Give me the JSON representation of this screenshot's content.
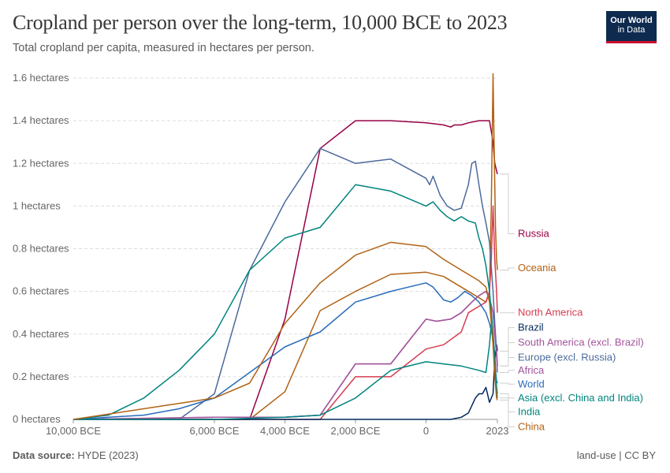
{
  "header": {
    "title": "Cropland per person over the long-term, 10,000 BCE to 2023",
    "subtitle": "Total cropland per capita, measured in hectares per person.",
    "logo_line1": "Our World",
    "logo_line2": "in Data"
  },
  "footer": {
    "source_label": "Data source:",
    "source_value": "HYDE (2023)",
    "right": "land-use | CC BY"
  },
  "chart_data": {
    "type": "line",
    "title": "Cropland per person over the long-term, 10,000 BCE to 2023",
    "subtitle": "Total cropland per capita, measured in hectares per person.",
    "ylim": [
      0,
      1.6
    ],
    "xlim": [
      -10000,
      2023
    ],
    "unit": "hectares",
    "y_ticks": [
      {
        "value": 0,
        "label": "0 hectares"
      },
      {
        "value": 0.2,
        "label": "0.2 hectares"
      },
      {
        "value": 0.4,
        "label": "0.4 hectares"
      },
      {
        "value": 0.6,
        "label": "0.6 hectares"
      },
      {
        "value": 0.8,
        "label": "0.8 hectares"
      },
      {
        "value": 1,
        "label": "1 hectares"
      },
      {
        "value": 1.2,
        "label": "1.2 hectares"
      },
      {
        "value": 1.4,
        "label": "1.4 hectares"
      },
      {
        "value": 1.6,
        "label": "1.6 hectares"
      }
    ],
    "x_ticks": [
      {
        "value": -10000,
        "label": "10,000 BCE"
      },
      {
        "value": -6000,
        "label": "6,000 BCE"
      },
      {
        "value": -4000,
        "label": "4,000 BCE"
      },
      {
        "value": -2000,
        "label": "2,000 BCE"
      },
      {
        "value": 0,
        "label": "0"
      },
      {
        "value": 2023,
        "label": "2023"
      }
    ],
    "grid": true,
    "legend_position": "right, labels at line ends",
    "series": [
      {
        "name": "Russia",
        "color": "#970046",
        "label_y": 0.87,
        "points": [
          [
            -10000,
            0
          ],
          [
            -5000,
            0
          ],
          [
            -4000,
            0.47
          ],
          [
            -3000,
            1.27
          ],
          [
            -2000,
            1.4
          ],
          [
            -1000,
            1.4
          ],
          [
            0,
            1.39
          ],
          [
            500,
            1.38
          ],
          [
            700,
            1.37
          ],
          [
            800,
            1.38
          ],
          [
            1000,
            1.38
          ],
          [
            1200,
            1.39
          ],
          [
            1500,
            1.4
          ],
          [
            1700,
            1.4
          ],
          [
            1800,
            1.4
          ],
          [
            1900,
            1.3
          ],
          [
            1950,
            1.2
          ],
          [
            2023,
            1.15
          ]
        ]
      },
      {
        "name": "Oceania",
        "color": "#b16214",
        "label_y": 0.71,
        "points": [
          [
            -10000,
            0
          ],
          [
            -5000,
            0
          ],
          [
            -4000,
            0.13
          ],
          [
            -3000,
            0.51
          ],
          [
            -2000,
            0.6
          ],
          [
            -1000,
            0.68
          ],
          [
            0,
            0.69
          ],
          [
            500,
            0.67
          ],
          [
            1000,
            0.62
          ],
          [
            1500,
            0.57
          ],
          [
            1700,
            0.55
          ],
          [
            1800,
            0.6
          ],
          [
            1850,
            1.0
          ],
          [
            1900,
            1.62
          ],
          [
            1930,
            1.3
          ],
          [
            1950,
            1.1
          ],
          [
            1970,
            0.9
          ],
          [
            2000,
            0.75
          ],
          [
            2023,
            0.7
          ]
        ]
      },
      {
        "name": "North America",
        "color": "#d73c50",
        "label_y": 0.5,
        "points": [
          [
            -10000,
            0
          ],
          [
            -3000,
            0
          ],
          [
            -2000,
            0.2
          ],
          [
            -1000,
            0.2
          ],
          [
            0,
            0.33
          ],
          [
            500,
            0.35
          ],
          [
            1000,
            0.41
          ],
          [
            1200,
            0.5
          ],
          [
            1500,
            0.53
          ],
          [
            1700,
            0.55
          ],
          [
            1800,
            0.6
          ],
          [
            1850,
            0.75
          ],
          [
            1900,
            1.0
          ],
          [
            1920,
            0.9
          ],
          [
            1950,
            0.75
          ],
          [
            2000,
            0.6
          ],
          [
            2023,
            0.5
          ]
        ]
      },
      {
        "name": "Brazil",
        "color": "#00295b",
        "label_y": 0.43,
        "points": [
          [
            -10000,
            0
          ],
          [
            0,
            0
          ],
          [
            500,
            0
          ],
          [
            700,
            0
          ],
          [
            1000,
            0.01
          ],
          [
            1200,
            0.03
          ],
          [
            1400,
            0.1
          ],
          [
            1500,
            0.12
          ],
          [
            1600,
            0.12
          ],
          [
            1700,
            0.15
          ],
          [
            1800,
            0.08
          ],
          [
            1900,
            0.12
          ],
          [
            1950,
            0.28
          ],
          [
            2000,
            0.35
          ],
          [
            2023,
            0.32
          ]
        ]
      },
      {
        "name": "South America (excl. Brazil)",
        "color": "#a2559c",
        "label_y": 0.36,
        "points": [
          [
            -10000,
            0
          ],
          [
            -6000,
            0.01
          ],
          [
            -4000,
            0.01
          ],
          [
            -3000,
            0.02
          ],
          [
            -2000,
            0.26
          ],
          [
            -1000,
            0.26
          ],
          [
            0,
            0.47
          ],
          [
            300,
            0.46
          ],
          [
            700,
            0.47
          ],
          [
            1000,
            0.5
          ],
          [
            1300,
            0.55
          ],
          [
            1500,
            0.58
          ],
          [
            1700,
            0.6
          ],
          [
            1800,
            0.57
          ],
          [
            1900,
            0.5
          ],
          [
            1950,
            0.4
          ],
          [
            2000,
            0.3
          ],
          [
            2023,
            0.25
          ]
        ]
      },
      {
        "name": "Europe (excl. Russia)",
        "color": "#4c6a9c",
        "label_y": 0.29,
        "points": [
          [
            -10000,
            0
          ],
          [
            -7000,
            0
          ],
          [
            -6000,
            0.12
          ],
          [
            -5000,
            0.7
          ],
          [
            -4000,
            1.02
          ],
          [
            -3000,
            1.27
          ],
          [
            -2000,
            1.2
          ],
          [
            -1000,
            1.22
          ],
          [
            0,
            1.13
          ],
          [
            100,
            1.1
          ],
          [
            200,
            1.14
          ],
          [
            400,
            1.05
          ],
          [
            600,
            1.0
          ],
          [
            800,
            0.98
          ],
          [
            1000,
            0.99
          ],
          [
            1200,
            1.1
          ],
          [
            1300,
            1.2
          ],
          [
            1400,
            1.21
          ],
          [
            1500,
            1.1
          ],
          [
            1600,
            1.0
          ],
          [
            1700,
            0.92
          ],
          [
            1800,
            0.83
          ],
          [
            1900,
            0.6
          ],
          [
            1950,
            0.45
          ],
          [
            2000,
            0.32
          ],
          [
            2023,
            0.25
          ]
        ]
      },
      {
        "name": "Africa",
        "color": "#a2559c",
        "label_y": 0.23,
        "points": [
          [
            -10000,
            0
          ],
          [
            -6000,
            0.01
          ],
          [
            -4000,
            0.01
          ],
          [
            -3000,
            0.02
          ],
          [
            -2000,
            0.26
          ],
          [
            -1000,
            0.26
          ],
          [
            0,
            0.47
          ],
          [
            300,
            0.46
          ],
          [
            700,
            0.47
          ],
          [
            1000,
            0.5
          ],
          [
            1300,
            0.55
          ],
          [
            1500,
            0.58
          ],
          [
            1700,
            0.6
          ],
          [
            1800,
            0.57
          ],
          [
            1900,
            0.5
          ],
          [
            1950,
            0.4
          ],
          [
            2000,
            0.3
          ],
          [
            2023,
            0.22
          ]
        ]
      },
      {
        "name": "World",
        "color": "#286bbb",
        "label_y": 0.165,
        "points": [
          [
            -10000,
            0
          ],
          [
            -9000,
            0.01
          ],
          [
            -8000,
            0.02
          ],
          [
            -7000,
            0.05
          ],
          [
            -6000,
            0.1
          ],
          [
            -5000,
            0.22
          ],
          [
            -4000,
            0.34
          ],
          [
            -3000,
            0.41
          ],
          [
            -2000,
            0.55
          ],
          [
            -1000,
            0.6
          ],
          [
            0,
            0.64
          ],
          [
            100,
            0.63
          ],
          [
            200,
            0.62
          ],
          [
            300,
            0.6
          ],
          [
            500,
            0.56
          ],
          [
            700,
            0.55
          ],
          [
            900,
            0.57
          ],
          [
            1100,
            0.6
          ],
          [
            1300,
            0.58
          ],
          [
            1500,
            0.55
          ],
          [
            1700,
            0.5
          ],
          [
            1800,
            0.45
          ],
          [
            1900,
            0.38
          ],
          [
            1950,
            0.25
          ],
          [
            2000,
            0.18
          ],
          [
            2023,
            0.17
          ]
        ]
      },
      {
        "name": "Asia (excl. China and India)",
        "color": "#00847e",
        "label_y": 0.1,
        "points": [
          [
            -10000,
            0
          ],
          [
            -9000,
            0.02
          ],
          [
            -8000,
            0.1
          ],
          [
            -7000,
            0.23
          ],
          [
            -6000,
            0.4
          ],
          [
            -5000,
            0.7
          ],
          [
            -4000,
            0.85
          ],
          [
            -3000,
            0.9
          ],
          [
            -2000,
            1.1
          ],
          [
            -1000,
            1.07
          ],
          [
            0,
            1.0
          ],
          [
            100,
            1.01
          ],
          [
            200,
            1.02
          ],
          [
            400,
            0.98
          ],
          [
            600,
            0.95
          ],
          [
            800,
            0.93
          ],
          [
            1000,
            0.95
          ],
          [
            1200,
            0.93
          ],
          [
            1400,
            0.92
          ],
          [
            1500,
            0.85
          ],
          [
            1600,
            0.8
          ],
          [
            1700,
            0.72
          ],
          [
            1800,
            0.6
          ],
          [
            1850,
            0.5
          ],
          [
            1900,
            0.4
          ],
          [
            1950,
            0.25
          ],
          [
            2000,
            0.13
          ],
          [
            2023,
            0.1
          ]
        ]
      },
      {
        "name": "India",
        "color": "#00847e",
        "label_y": 0.035,
        "points": [
          [
            -10000,
            0
          ],
          [
            -6000,
            0
          ],
          [
            -4000,
            0.01
          ],
          [
            -3000,
            0.02
          ],
          [
            -2000,
            0.1
          ],
          [
            -1000,
            0.23
          ],
          [
            0,
            0.27
          ],
          [
            500,
            0.26
          ],
          [
            1000,
            0.25
          ],
          [
            1500,
            0.23
          ],
          [
            1700,
            0.22
          ],
          [
            1800,
            0.35
          ],
          [
            1850,
            0.45
          ],
          [
            1900,
            0.4
          ],
          [
            1950,
            0.3
          ],
          [
            2000,
            0.15
          ],
          [
            2023,
            0.12
          ]
        ]
      },
      {
        "name": "China",
        "color": "#b16214",
        "label_y": -0.035,
        "points": [
          [
            -10000,
            0
          ],
          [
            -6000,
            0.1
          ],
          [
            -5000,
            0.17
          ],
          [
            -4000,
            0.45
          ],
          [
            -3000,
            0.64
          ],
          [
            -2000,
            0.77
          ],
          [
            -1000,
            0.83
          ],
          [
            0,
            0.81
          ],
          [
            500,
            0.75
          ],
          [
            1000,
            0.7
          ],
          [
            1500,
            0.65
          ],
          [
            1700,
            0.62
          ],
          [
            1800,
            0.55
          ],
          [
            1850,
            0.45
          ],
          [
            1900,
            0.35
          ],
          [
            1950,
            0.2
          ],
          [
            2000,
            0.1
          ],
          [
            2023,
            0.09
          ]
        ]
      }
    ]
  }
}
